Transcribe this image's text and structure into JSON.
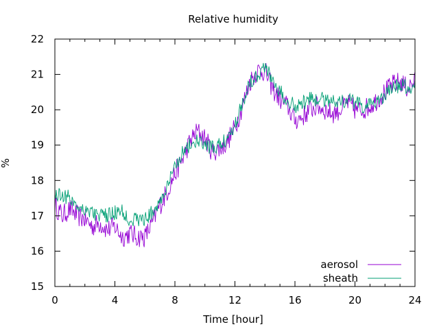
{
  "chart_data": {
    "type": "line",
    "title": "Relative humidity",
    "xlabel": "Time [hour]",
    "ylabel": "%",
    "xlim": [
      0,
      24
    ],
    "ylim": [
      15,
      22
    ],
    "x_ticks": [
      0,
      4,
      8,
      12,
      16,
      20,
      24
    ],
    "x_tick_labels": [
      "0",
      "4",
      "8",
      "12",
      "16",
      "20",
      "24"
    ],
    "y_ticks": [
      15,
      16,
      17,
      18,
      19,
      20,
      21,
      22
    ],
    "y_tick_labels": [
      "15",
      "16",
      "17",
      "18",
      "19",
      "20",
      "21",
      "22"
    ],
    "grid": false,
    "legend_position": "bottom-right",
    "series": [
      {
        "name": "aerosol",
        "color": "#9400d3",
        "x": [
          0,
          0.5,
          1,
          1.5,
          2,
          2.5,
          3,
          3.5,
          4,
          4.5,
          5,
          5.5,
          6,
          6.5,
          7,
          7.5,
          8,
          8.5,
          9,
          9.5,
          10,
          10.5,
          11,
          11.5,
          12,
          12.5,
          13,
          13.5,
          14,
          14.5,
          15,
          15.5,
          16,
          16.5,
          17,
          17.5,
          18,
          18.5,
          19,
          19.5,
          20,
          20.5,
          21,
          21.5,
          22,
          22.5,
          23,
          23.5,
          24
        ],
        "values": [
          17.3,
          17.0,
          17.2,
          17.0,
          16.9,
          16.7,
          16.8,
          16.6,
          16.7,
          16.4,
          16.5,
          16.4,
          16.4,
          16.8,
          17.3,
          17.7,
          18.2,
          18.6,
          19.1,
          19.4,
          19.2,
          18.8,
          18.9,
          19.1,
          19.5,
          20.1,
          20.8,
          21.1,
          21.1,
          20.6,
          20.3,
          20.1,
          19.7,
          19.8,
          20.0,
          20.1,
          20.0,
          19.9,
          20.0,
          20.2,
          20.0,
          20.0,
          20.1,
          20.3,
          20.5,
          20.7,
          20.8,
          20.6,
          20.8
        ]
      },
      {
        "name": "sheath",
        "color": "#009e73",
        "x": [
          0,
          0.5,
          1,
          1.5,
          2,
          2.5,
          3,
          3.5,
          4,
          4.5,
          5,
          5.5,
          6,
          6.5,
          7,
          7.5,
          8,
          8.5,
          9,
          9.5,
          10,
          10.5,
          11,
          11.5,
          12,
          12.5,
          13,
          13.5,
          14,
          14.5,
          15,
          15.5,
          16,
          16.5,
          17,
          17.5,
          18,
          18.5,
          19,
          19.5,
          20,
          20.5,
          21,
          21.5,
          22,
          22.5,
          23,
          23.5,
          24
        ],
        "values": [
          17.6,
          17.6,
          17.5,
          17.3,
          17.2,
          17.1,
          17.0,
          17.0,
          17.1,
          17.1,
          16.9,
          16.9,
          16.9,
          17.1,
          17.4,
          17.8,
          18.4,
          18.8,
          19.0,
          19.1,
          19.0,
          18.9,
          19.0,
          19.2,
          19.6,
          20.2,
          20.8,
          21.0,
          21.2,
          20.9,
          20.5,
          20.3,
          20.1,
          20.2,
          20.3,
          20.3,
          20.3,
          20.3,
          20.2,
          20.3,
          20.2,
          20.1,
          20.1,
          20.3,
          20.4,
          20.6,
          20.7,
          20.6,
          20.7
        ]
      }
    ]
  }
}
